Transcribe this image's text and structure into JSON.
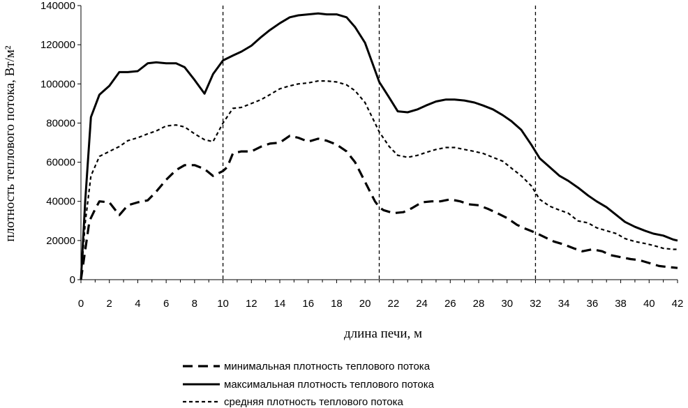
{
  "chart_data": {
    "type": "line",
    "title": "",
    "xlabel": "длина печи, м",
    "ylabel": "плотность теплового потока, Вт/м²",
    "xlim": [
      0,
      42
    ],
    "ylim": [
      0,
      140000
    ],
    "x_ticks": [
      "0",
      "2",
      "4",
      "6",
      "8",
      "10",
      "12",
      "14",
      "16",
      "18",
      "20",
      "22",
      "24",
      "26",
      "28",
      "30",
      "32",
      "34",
      "36",
      "38",
      "40",
      "42"
    ],
    "y_ticks": [
      "0",
      "20000",
      "40000",
      "60000",
      "80000",
      "100000",
      "120000",
      "140000"
    ],
    "grid": false,
    "vertical_markers": [
      10,
      21,
      32
    ],
    "legend_position": "bottom",
    "series": [
      {
        "name": "минимальная плотность теплового потока",
        "style": "long-dash",
        "points": [
          [
            0,
            0
          ],
          [
            0.3,
            15000
          ],
          [
            0.6,
            30000
          ],
          [
            1.0,
            36000
          ],
          [
            1.3,
            40000
          ],
          [
            2,
            39500
          ],
          [
            2.7,
            33000
          ],
          [
            3.3,
            38000
          ],
          [
            4,
            39500
          ],
          [
            4.7,
            40500
          ],
          [
            5.3,
            45000
          ],
          [
            6,
            51000
          ],
          [
            6.7,
            56000
          ],
          [
            7.3,
            58500
          ],
          [
            8,
            58500
          ],
          [
            8.7,
            56500
          ],
          [
            9.3,
            53000
          ],
          [
            10,
            55500
          ],
          [
            10.3,
            57500
          ],
          [
            10.7,
            64500
          ],
          [
            11.3,
            65500
          ],
          [
            12,
            65500
          ],
          [
            12.7,
            68000
          ],
          [
            13.3,
            69500
          ],
          [
            14,
            70000
          ],
          [
            14.7,
            73500
          ],
          [
            15.3,
            72500
          ],
          [
            16,
            70500
          ],
          [
            16.7,
            72000
          ],
          [
            17.3,
            71000
          ],
          [
            18,
            69000
          ],
          [
            18.7,
            65500
          ],
          [
            19.3,
            60000
          ],
          [
            20,
            50000
          ],
          [
            20.7,
            40000
          ],
          [
            21,
            37000
          ],
          [
            21.3,
            35500
          ],
          [
            22,
            34000
          ],
          [
            22.7,
            34500
          ],
          [
            23.3,
            36500
          ],
          [
            24,
            39500
          ],
          [
            24.7,
            40000
          ],
          [
            25.3,
            40000
          ],
          [
            26,
            41000
          ],
          [
            26.7,
            40000
          ],
          [
            27.3,
            38500
          ],
          [
            28,
            38000
          ],
          [
            28.7,
            36000
          ],
          [
            29.3,
            34000
          ],
          [
            30,
            31500
          ],
          [
            30.7,
            28000
          ],
          [
            31.3,
            26000
          ],
          [
            32,
            24000
          ],
          [
            32.7,
            21500
          ],
          [
            33.3,
            19500
          ],
          [
            34,
            18000
          ],
          [
            34.7,
            16000
          ],
          [
            35.3,
            14500
          ],
          [
            36,
            15500
          ],
          [
            36.7,
            14500
          ],
          [
            37.3,
            12500
          ],
          [
            38,
            11500
          ],
          [
            38.7,
            10500
          ],
          [
            39.3,
            10000
          ],
          [
            40,
            8500
          ],
          [
            40.7,
            7000
          ],
          [
            41.3,
            6500
          ],
          [
            42,
            6000
          ]
        ]
      },
      {
        "name": "максимальная плотность теплового потока",
        "style": "solid",
        "points": [
          [
            0,
            0
          ],
          [
            0.3,
            40000
          ],
          [
            0.7,
            83000
          ],
          [
            1.3,
            94500
          ],
          [
            2,
            99000
          ],
          [
            2.7,
            106000
          ],
          [
            3.3,
            106000
          ],
          [
            4,
            106500
          ],
          [
            4.7,
            110500
          ],
          [
            5.3,
            111000
          ],
          [
            6,
            110500
          ],
          [
            6.7,
            110500
          ],
          [
            7.3,
            108500
          ],
          [
            8,
            102000
          ],
          [
            8.7,
            95000
          ],
          [
            9.3,
            105000
          ],
          [
            10,
            112000
          ],
          [
            10.7,
            114500
          ],
          [
            11.3,
            116500
          ],
          [
            12,
            119500
          ],
          [
            12.7,
            124000
          ],
          [
            13.3,
            127500
          ],
          [
            14,
            131000
          ],
          [
            14.7,
            134000
          ],
          [
            15.3,
            135000
          ],
          [
            16,
            135500
          ],
          [
            16.7,
            136000
          ],
          [
            17.3,
            135500
          ],
          [
            18,
            135500
          ],
          [
            18.7,
            134000
          ],
          [
            19.3,
            129000
          ],
          [
            20,
            121000
          ],
          [
            20.7,
            107000
          ],
          [
            21,
            101000
          ],
          [
            21.7,
            93000
          ],
          [
            22.3,
            86000
          ],
          [
            23,
            85500
          ],
          [
            23.7,
            87000
          ],
          [
            24.3,
            89000
          ],
          [
            25,
            91000
          ],
          [
            25.7,
            92000
          ],
          [
            26.3,
            92000
          ],
          [
            27,
            91500
          ],
          [
            27.7,
            90500
          ],
          [
            28.3,
            89000
          ],
          [
            29,
            87000
          ],
          [
            29.7,
            84000
          ],
          [
            30.3,
            81000
          ],
          [
            31,
            76500
          ],
          [
            31.7,
            69000
          ],
          [
            32.3,
            62000
          ],
          [
            33,
            57500
          ],
          [
            33.7,
            53000
          ],
          [
            34.3,
            50500
          ],
          [
            35,
            47000
          ],
          [
            35.7,
            43000
          ],
          [
            36.3,
            40000
          ],
          [
            37,
            37000
          ],
          [
            37.7,
            33000
          ],
          [
            38.3,
            29500
          ],
          [
            39,
            27000
          ],
          [
            39.7,
            25000
          ],
          [
            40.3,
            23500
          ],
          [
            41,
            22500
          ],
          [
            41.7,
            20500
          ],
          [
            42,
            20000
          ]
        ]
      },
      {
        "name": "средняя плотность теплового потока",
        "style": "short-dash",
        "points": [
          [
            0,
            0
          ],
          [
            0.3,
            29000
          ],
          [
            0.7,
            53000
          ],
          [
            1.3,
            63000
          ],
          [
            2,
            65500
          ],
          [
            2.7,
            68000
          ],
          [
            3.3,
            71000
          ],
          [
            4,
            72500
          ],
          [
            4.7,
            74500
          ],
          [
            5.3,
            76000
          ],
          [
            6,
            78500
          ],
          [
            6.7,
            79000
          ],
          [
            7.3,
            78000
          ],
          [
            8,
            74500
          ],
          [
            8.7,
            71500
          ],
          [
            9.3,
            70500
          ],
          [
            10,
            80000
          ],
          [
            10.7,
            87500
          ],
          [
            11.3,
            88000
          ],
          [
            12,
            90000
          ],
          [
            12.7,
            92000
          ],
          [
            13.3,
            94500
          ],
          [
            14,
            97500
          ],
          [
            14.7,
            99000
          ],
          [
            15.3,
            100000
          ],
          [
            16,
            100500
          ],
          [
            16.7,
            101500
          ],
          [
            17.3,
            101500
          ],
          [
            18,
            101000
          ],
          [
            18.7,
            99500
          ],
          [
            19.3,
            96500
          ],
          [
            20,
            90500
          ],
          [
            20.7,
            80000
          ],
          [
            21,
            75500
          ],
          [
            21.7,
            68000
          ],
          [
            22.3,
            63500
          ],
          [
            23,
            62500
          ],
          [
            23.7,
            63500
          ],
          [
            24.3,
            65000
          ],
          [
            25,
            66500
          ],
          [
            25.7,
            67500
          ],
          [
            26.3,
            67500
          ],
          [
            27,
            66500
          ],
          [
            27.7,
            65500
          ],
          [
            28.3,
            64500
          ],
          [
            29,
            62500
          ],
          [
            29.7,
            60500
          ],
          [
            30.3,
            57000
          ],
          [
            31,
            53000
          ],
          [
            31.7,
            48000
          ],
          [
            32.3,
            41000
          ],
          [
            33,
            37500
          ],
          [
            33.7,
            35500
          ],
          [
            34.3,
            34000
          ],
          [
            35,
            30000
          ],
          [
            35.7,
            29000
          ],
          [
            36.3,
            26500
          ],
          [
            37,
            25000
          ],
          [
            37.7,
            23500
          ],
          [
            38.3,
            21000
          ],
          [
            39,
            19500
          ],
          [
            39.7,
            18500
          ],
          [
            40.3,
            17500
          ],
          [
            41,
            16000
          ],
          [
            41.7,
            15500
          ],
          [
            42,
            15500
          ]
        ]
      }
    ]
  },
  "colors": {
    "line": "#000000",
    "background": "#ffffff"
  }
}
